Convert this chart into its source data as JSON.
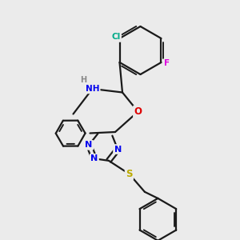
{
  "background_color": "#ebebeb",
  "atom_colors": {
    "C": "#1a1a1a",
    "N": "#0000ee",
    "O": "#dd0000",
    "S": "#bbaa00",
    "Cl": "#00aa88",
    "F": "#dd00dd",
    "H": "#888888"
  },
  "bond_color": "#1a1a1a",
  "bond_width": 1.6
}
